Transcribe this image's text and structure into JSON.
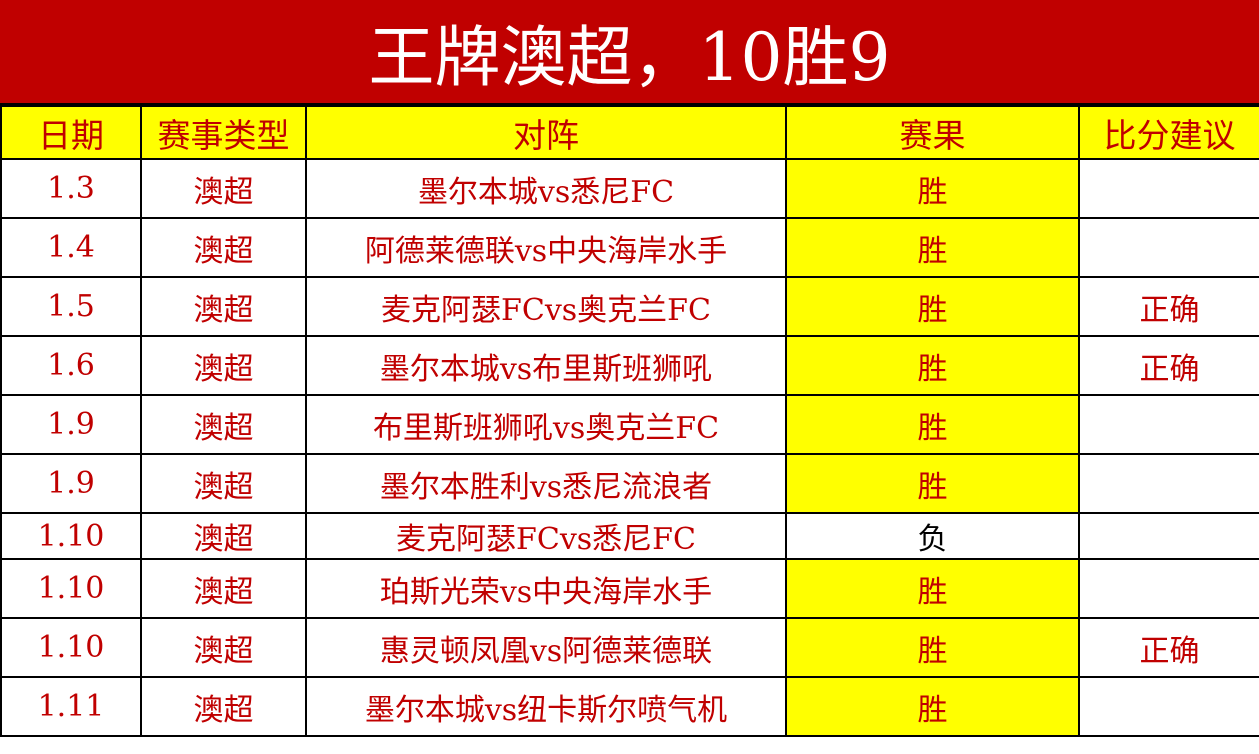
{
  "title": "王牌澳超，10胜9",
  "colors": {
    "title_bg": "#c00000",
    "header_bg": "#ffff00",
    "text": "#c00000",
    "win_bg": "#ffff00"
  },
  "headers": [
    "日期",
    "赛事类型",
    "对阵",
    "赛果",
    "比分建议"
  ],
  "rows": [
    {
      "date": "1.3",
      "type": "澳超",
      "match": "墨尔本城vs悉尼FC",
      "result": "胜",
      "advice": ""
    },
    {
      "date": "1.4",
      "type": "澳超",
      "match": "阿德莱德联vs中央海岸水手",
      "result": "胜",
      "advice": ""
    },
    {
      "date": "1.5",
      "type": "澳超",
      "match": "麦克阿瑟FCvs奥克兰FC",
      "result": "胜",
      "advice": "正确"
    },
    {
      "date": "1.6",
      "type": "澳超",
      "match": "墨尔本城vs布里斯班狮吼",
      "result": "胜",
      "advice": "正确"
    },
    {
      "date": "1.9",
      "type": "澳超",
      "match": "布里斯班狮吼vs奥克兰FC",
      "result": "胜",
      "advice": ""
    },
    {
      "date": "1.9",
      "type": "澳超",
      "match": "墨尔本胜利vs悉尼流浪者",
      "result": "胜",
      "advice": ""
    },
    {
      "date": "1.10",
      "type": "澳超",
      "match": "麦克阿瑟FCvs悉尼FC",
      "result": "负",
      "advice": ""
    },
    {
      "date": "1.10",
      "type": "澳超",
      "match": "珀斯光荣vs中央海岸水手",
      "result": "胜",
      "advice": ""
    },
    {
      "date": "1.10",
      "type": "澳超",
      "match": "惠灵顿凤凰vs阿德莱德联",
      "result": "胜",
      "advice": "正确"
    },
    {
      "date": "1.11",
      "type": "澳超",
      "match": "墨尔本城vs纽卡斯尔喷气机",
      "result": "胜",
      "advice": ""
    }
  ]
}
